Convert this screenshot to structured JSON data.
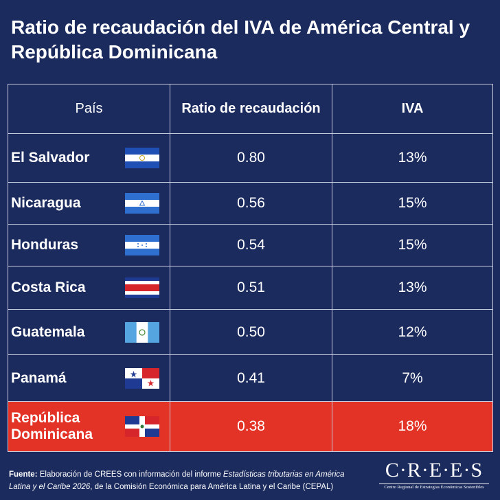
{
  "title": "Ratio de recaudación del IVA de América Central y República Dominicana",
  "chart_data": {
    "type": "table",
    "columns": [
      "País",
      "Ratio de recaudación",
      "IVA"
    ],
    "rows": [
      {
        "country": "El Salvador",
        "flag": "el-salvador-flag",
        "ratio": "0.80",
        "iva": "13%"
      },
      {
        "country": "Nicaragua",
        "flag": "nicaragua-flag",
        "ratio": "0.56",
        "iva": "15%"
      },
      {
        "country": "Honduras",
        "flag": "honduras-flag",
        "ratio": "0.54",
        "iva": "15%"
      },
      {
        "country": "Costa Rica",
        "flag": "costa-rica-flag",
        "ratio": "0.51",
        "iva": "13%"
      },
      {
        "country": "Guatemala",
        "flag": "guatemala-flag",
        "ratio": "0.50",
        "iva": "12%"
      },
      {
        "country": "Panamá",
        "flag": "panama-flag",
        "ratio": "0.41",
        "iva": "7%"
      },
      {
        "country": "República Dominicana",
        "flag": "dominican-republic-flag",
        "ratio": "0.38",
        "iva": "18%",
        "highlight": true
      }
    ]
  },
  "footer": {
    "label": "Fuente:",
    "text_1": " Elaboración de CREES con información del informe ",
    "source_title": "Estadísticas tributarias en América Latina y el Caribe 2026",
    "text_2": ", de la Comisión Económica para América Latina y el Caribe (CEPAL)"
  },
  "logo": {
    "name": "C·R·E·E·S",
    "subtitle": "Centro Regional de Estrategias Económicas Sostenibles"
  },
  "colors": {
    "background": "#1b2b5e",
    "highlight": "#e33326",
    "border": "#c8cde0"
  }
}
